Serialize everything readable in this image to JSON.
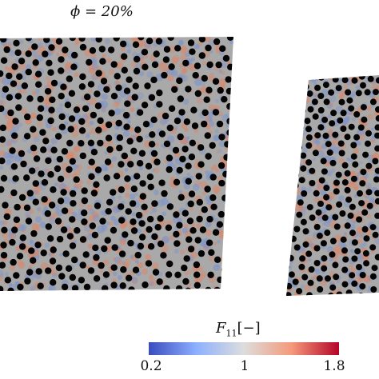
{
  "panel_title": "ϕ = 20%",
  "colorbar": {
    "label_symbol": "F",
    "label_subscript": "11",
    "label_unit": "[−]",
    "ticks": [
      "0.2",
      "1",
      "1.8"
    ],
    "range": [
      0.2,
      1.8
    ],
    "colors": {
      "low": "#3b4cc0",
      "mid": "#dddddd",
      "high": "#b40426"
    }
  },
  "colors": {
    "matrix": "#a9a9a9",
    "inclusions": "#050505",
    "tension": "#d9876a",
    "compression": "#7f95c8"
  },
  "panels": [
    {
      "name": "left-specimen",
      "inclusion_fraction": 0.2
    },
    {
      "name": "right-specimen",
      "inclusion_fraction": 0.2
    }
  ]
}
